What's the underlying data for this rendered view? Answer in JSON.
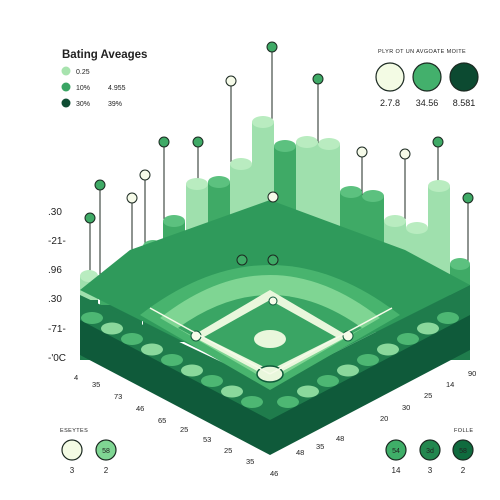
{
  "title": "Bating Aveages",
  "legend": [
    {
      "label": "0.25",
      "color": "#a7e3ae"
    },
    {
      "label": "10%",
      "value": "4.955",
      "color": "#3aa564"
    },
    {
      "label": "30%",
      "value": "39%",
      "color": "#0f4d33"
    }
  ],
  "top_right": {
    "caption": "PLYR OT UN AVGOATE MOITE",
    "circles": [
      {
        "value": "2.7.8",
        "color": "#f3fbe4"
      },
      {
        "value": "34.56",
        "color": "#43b06c"
      },
      {
        "value": "8.581",
        "color": "#0c4a31"
      }
    ]
  },
  "left_axis": {
    "ticks": [
      ".30",
      "-21-",
      ".96",
      ".30",
      "-71-",
      "-'0C"
    ]
  },
  "bottom_left": {
    "caption": "ESEYTES",
    "items": [
      {
        "inner": "",
        "value": "3",
        "color": "#f3fbe4"
      },
      {
        "inner": "58",
        "value": "2",
        "color": "#7fd693"
      }
    ]
  },
  "bottom_right": {
    "caption": "FOLLE",
    "items": [
      {
        "inner": "54",
        "value": "14",
        "color": "#3fae68"
      },
      {
        "inner": "3d",
        "value": "3",
        "color": "#23874f"
      },
      {
        "inner": "58",
        "value": "2",
        "color": "#0f6b3e"
      }
    ]
  },
  "left_edge_labels": [
    "4",
    "35",
    "73",
    "46",
    "65",
    "25",
    "53",
    "25",
    "35"
  ],
  "right_edge_labels": [
    "90",
    "14",
    "25",
    "30",
    "20",
    "48",
    "35",
    "48",
    "46"
  ],
  "colors": {
    "light": "#9fe0ad",
    "mid": "#3faa66",
    "dark": "#0f5a3a",
    "pale": "#e9f7dc"
  },
  "chart_data": {
    "type": "bar",
    "title": "Bating Aveages",
    "xlabel": "",
    "ylabel": "",
    "grid": false,
    "legend_position": "top-left",
    "y_ticks": [
      ".30",
      "-21-",
      ".96",
      ".30",
      "-71-",
      "-'0C"
    ],
    "left_side_labels": [
      "4",
      "35",
      "73",
      "46",
      "65",
      "25",
      "53",
      "25",
      "35"
    ],
    "right_side_labels": [
      "90",
      "14",
      "25",
      "30",
      "20",
      "48",
      "35",
      "48",
      "46"
    ]
  }
}
